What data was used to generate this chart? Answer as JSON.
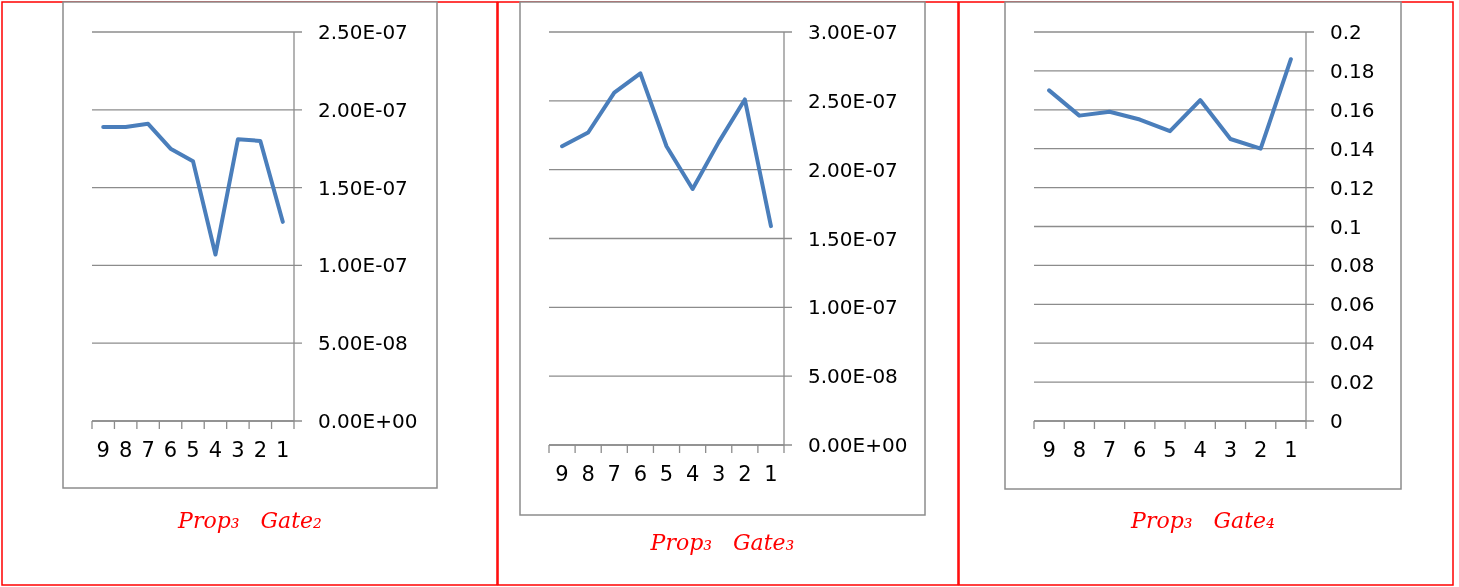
{
  "chart_data": [
    {
      "type": "line",
      "title": "Prop₃   Gate₂",
      "categories": [
        "9",
        "8",
        "7",
        "6",
        "5",
        "4",
        "3",
        "2",
        "1"
      ],
      "series": [
        {
          "color": "#4a7ebb",
          "values": [
            1.89e-07,
            1.89e-07,
            1.91e-07,
            1.75e-07,
            1.67e-07,
            1.07e-07,
            1.81e-07,
            1.8e-07,
            1.28e-07
          ]
        }
      ],
      "ylim": [
        0,
        2.5e-07
      ],
      "yticks": [
        {
          "value": 0,
          "label": "0.00E+00"
        },
        {
          "value": 5e-08,
          "label": "5.00E-08"
        },
        {
          "value": 1e-07,
          "label": "1.00E-07"
        },
        {
          "value": 1.5e-07,
          "label": "1.50E-07"
        },
        {
          "value": 2e-07,
          "label": "2.00E-07"
        },
        {
          "value": 2.5e-07,
          "label": "2.50E-07"
        }
      ],
      "grid": "y",
      "line_style": "solid"
    },
    {
      "type": "line",
      "title": "Prop₃   Gate₃",
      "categories": [
        "9",
        "8",
        "7",
        "6",
        "5",
        "4",
        "3",
        "2",
        "1"
      ],
      "series": [
        {
          "color": "#4a7ebb",
          "values": [
            2.17e-07,
            2.27e-07,
            2.56e-07,
            2.7e-07,
            2.17e-07,
            1.86e-07,
            2.2e-07,
            2.51e-07,
            1.59e-07
          ]
        }
      ],
      "ylim": [
        0,
        3e-07
      ],
      "yticks": [
        {
          "value": 0,
          "label": "0.00E+00"
        },
        {
          "value": 5e-08,
          "label": "5.00E-08"
        },
        {
          "value": 1e-07,
          "label": "1.00E-07"
        },
        {
          "value": 1.5e-07,
          "label": "1.50E-07"
        },
        {
          "value": 2e-07,
          "label": "2.00E-07"
        },
        {
          "value": 2.5e-07,
          "label": "2.50E-07"
        },
        {
          "value": 3e-07,
          "label": "3.00E-07"
        }
      ],
      "grid": "y",
      "line_style": "solid"
    },
    {
      "type": "line",
      "title": "Prop₃   Gate₄",
      "categories": [
        "9",
        "8",
        "7",
        "6",
        "5",
        "4",
        "3",
        "2",
        "1"
      ],
      "series": [
        {
          "color": "#4a7ebb",
          "values": [
            0.17,
            0.157,
            0.159,
            0.155,
            0.149,
            0.165,
            0.145,
            0.14,
            0.186
          ]
        }
      ],
      "ylim": [
        0,
        0.2
      ],
      "yticks": [
        0,
        0.02,
        0.04,
        0.06,
        0.08,
        0.1,
        0.12,
        0.14,
        0.16,
        0.18,
        0.2
      ],
      "grid": "y",
      "line_style": "solid"
    }
  ]
}
